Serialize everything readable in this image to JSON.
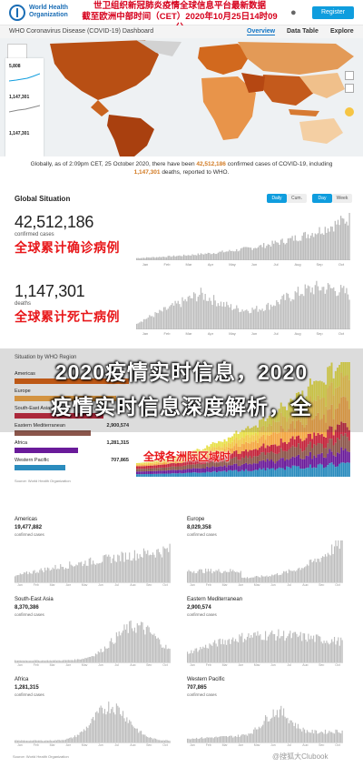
{
  "header": {
    "logo_text": "World Health Organization",
    "bell_icon": "bell-icon",
    "register_button": "Register",
    "red_banner_line1": "世卫组织新冠肺炎疫情全球信息平台最新数据",
    "red_banner_line2": "截至欧洲中部时间（CET）2020年10月25日14时09分"
  },
  "subheader": {
    "title": "WHO Coronavirus Disease (COVID-19) Dashboard",
    "nav": [
      "Overview",
      "Data Table",
      "Explore"
    ]
  },
  "caption": {
    "text_pre": "Globally, as of 2:09pm CET, 25 October 2020, there have been ",
    "cases": "42,512,186",
    "text_mid": " confirmed cases of COVID-19, including ",
    "deaths": "1,147,301",
    "text_post": " deaths, reported to WHO."
  },
  "map_panel": {
    "values": [
      "5,808",
      "1,147,301",
      "1,147,301"
    ]
  },
  "global_situation": {
    "title": "Global Situation",
    "toggles": [
      "Daily",
      "Cum.",
      "Day",
      "Week"
    ],
    "cases_value": "42,512,186",
    "cases_label": "confirmed cases",
    "cases_cn": "全球累计确诊病例",
    "deaths_value": "1,147,301",
    "deaths_label": "deaths",
    "deaths_cn": "全球累计死亡病例",
    "x_ticks": [
      "Jan",
      "Feb",
      "Mar",
      "Apr",
      "May",
      "Jun",
      "Jul",
      "Aug",
      "Sep",
      "Oct"
    ]
  },
  "overlay": {
    "line1": "2020疫情实时信息，2020",
    "line2": "疫情实时信息深度解析，全",
    "region_cn": "全球各洲际区域时"
  },
  "region_section": {
    "title": "Situation by WHO Region",
    "rows": [
      {
        "name": "Americas",
        "value": "",
        "color": "#d95f0e"
      },
      {
        "name": "Europe",
        "value": "",
        "color": "#f4a742"
      },
      {
        "name": "South-East Asia",
        "value": "",
        "color": "#c4243b"
      },
      {
        "name": "Eastern Mediterranean",
        "value": "2,900,574",
        "color": "#8c564b"
      },
      {
        "name": "Africa",
        "value": "1,281,315",
        "color": "#6a1b9a"
      },
      {
        "name": "Western Pacific",
        "value": "707,865",
        "color": "#2b8cbe"
      }
    ],
    "source": "Source: World Health Organization"
  },
  "small_multiples": [
    {
      "name": "Americas",
      "value": "19,477,882",
      "sub": "confirmed cases"
    },
    {
      "name": "Europe",
      "value": "8,029,358",
      "sub": "confirmed cases"
    },
    {
      "name": "South-East Asia",
      "value": "8,370,386",
      "sub": "confirmed cases"
    },
    {
      "name": "Eastern Mediterranean",
      "value": "2,900,574",
      "sub": "confirmed cases"
    },
    {
      "name": "Africa",
      "value": "1,281,315",
      "sub": "confirmed cases"
    },
    {
      "name": "Western Pacific",
      "value": "707,865",
      "sub": "confirmed cases"
    }
  ],
  "footer": {
    "watermark": "@搜狐大Clubook",
    "source": "Source: World Health Organization"
  },
  "colors": {
    "accent": "#0f9dde",
    "banner_red": "#d6001c",
    "bar_gray": "#b7b7b7",
    "map_orange": "#e07b2c"
  }
}
